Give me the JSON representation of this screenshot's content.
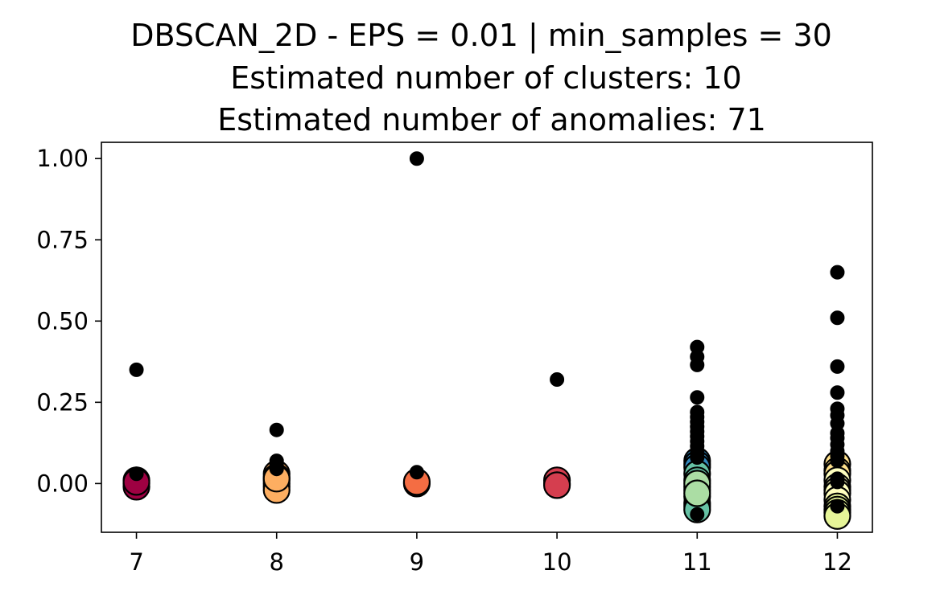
{
  "chart_data": {
    "type": "scatter",
    "title_lines": [
      "DBSCAN_2D - EPS = 0.01 | min_samples = 30",
      "Estimated number of clusters: 10",
      "Estimated number of anomalies: 71"
    ],
    "xlabel": "",
    "ylabel": "",
    "xlim": [
      6.75,
      12.25
    ],
    "ylim": [
      -0.15,
      1.05
    ],
    "x_ticks": [
      7,
      8,
      9,
      10,
      11,
      12
    ],
    "x_tick_labels": [
      "7",
      "8",
      "9",
      "10",
      "11",
      "12"
    ],
    "y_ticks": [
      0.0,
      0.25,
      0.5,
      0.75,
      1.0
    ],
    "y_tick_labels": [
      "0.00",
      "0.25",
      "0.50",
      "0.75",
      "1.00"
    ],
    "grid": false,
    "legend": "none",
    "clusters": [
      {
        "color": "#9e0142",
        "points": [
          [
            7,
            0.0
          ],
          [
            7,
            0.01
          ],
          [
            7,
            -0.01
          ],
          [
            7,
            0.005
          ]
        ]
      },
      {
        "color": "#fdae61",
        "points": [
          [
            8,
            0.03
          ],
          [
            8,
            0.02
          ],
          [
            8,
            0.01
          ],
          [
            8,
            0.0
          ],
          [
            8,
            -0.01
          ],
          [
            8,
            -0.02
          ],
          [
            8,
            0.015
          ]
        ]
      },
      {
        "color": "#f46d43",
        "points": [
          [
            9,
            0.0
          ],
          [
            9,
            0.005
          ]
        ]
      },
      {
        "color": "#d53e4f",
        "points": [
          [
            10,
            0.0
          ],
          [
            10,
            0.01
          ],
          [
            10,
            -0.005
          ]
        ]
      },
      {
        "color": "#3288bd",
        "points": [
          [
            11,
            0.07
          ],
          [
            11,
            0.06
          ],
          [
            11,
            0.05
          ]
        ]
      },
      {
        "color": "#66c2a5",
        "points": [
          [
            11,
            0.03
          ],
          [
            11,
            0.01
          ],
          [
            11,
            -0.01
          ],
          [
            11,
            -0.02
          ],
          [
            11,
            -0.04
          ],
          [
            11,
            -0.06
          ],
          [
            11,
            -0.07
          ],
          [
            11,
            -0.08
          ]
        ]
      },
      {
        "color": "#abdda4",
        "points": [
          [
            11,
            0.0
          ],
          [
            11,
            -0.03
          ]
        ]
      },
      {
        "color": "#fee08b",
        "points": [
          [
            12,
            0.06
          ],
          [
            12,
            0.04
          ],
          [
            12,
            0.03
          ]
        ]
      },
      {
        "color": "#ffffbf",
        "points": [
          [
            12,
            0.01
          ],
          [
            12,
            -0.01
          ],
          [
            12,
            -0.02
          ],
          [
            12,
            -0.03
          ],
          [
            12,
            -0.05
          ]
        ]
      },
      {
        "color": "#e6f598",
        "points": [
          [
            12,
            -0.07
          ],
          [
            12,
            -0.08
          ],
          [
            12,
            -0.09
          ],
          [
            12,
            -0.1
          ]
        ]
      }
    ],
    "anomaly_color": "#000000",
    "anomalies": [
      [
        7,
        0.35
      ],
      [
        7,
        0.03
      ],
      [
        8,
        0.165
      ],
      [
        8,
        0.07
      ],
      [
        8,
        0.055
      ],
      [
        8,
        0.045
      ],
      [
        9,
        1.0
      ],
      [
        9,
        0.035
      ],
      [
        10,
        0.32
      ],
      [
        11,
        0.42
      ],
      [
        11,
        0.39
      ],
      [
        11,
        0.365
      ],
      [
        11,
        0.265
      ],
      [
        11,
        0.22
      ],
      [
        11,
        0.205
      ],
      [
        11,
        0.19
      ],
      [
        11,
        0.175
      ],
      [
        11,
        0.16
      ],
      [
        11,
        0.145
      ],
      [
        11,
        0.13
      ],
      [
        11,
        0.115
      ],
      [
        11,
        0.1
      ],
      [
        11,
        0.09
      ],
      [
        11,
        0.08
      ],
      [
        11,
        -0.095
      ],
      [
        12,
        0.65
      ],
      [
        12,
        0.51
      ],
      [
        12,
        0.36
      ],
      [
        12,
        0.28
      ],
      [
        12,
        0.23
      ],
      [
        12,
        0.21
      ],
      [
        12,
        0.185
      ],
      [
        12,
        0.155
      ],
      [
        12,
        0.14
      ],
      [
        12,
        0.12
      ],
      [
        12,
        0.1
      ],
      [
        12,
        0.085
      ],
      [
        12,
        0.07
      ],
      [
        12,
        0.015
      ],
      [
        12,
        0.005
      ],
      [
        12,
        -0.07
      ]
    ]
  }
}
